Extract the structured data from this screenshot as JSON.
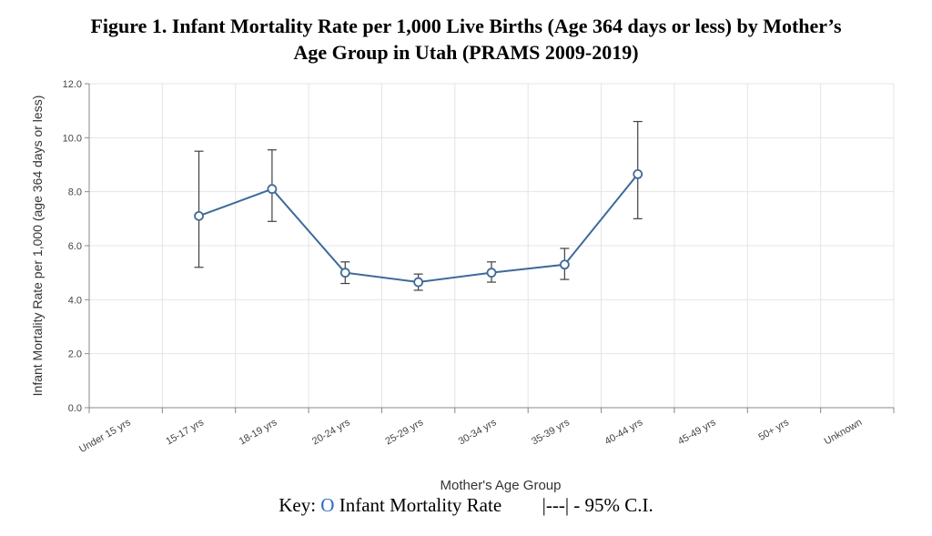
{
  "figure": {
    "title_line1": "Figure 1. Infant Mortality Rate per 1,000 Live Births (Age 364 days or less) by Mother’s",
    "title_line2": "Age Group in Utah (PRAMS 2009-2019)"
  },
  "key": {
    "prefix": "Key:",
    "rate_symbol": "O",
    "rate_label": "Infant Mortality Rate",
    "ci_symbol": "|---|",
    "ci_label": "- 95% C.I."
  },
  "colors": {
    "line": "#3e6a99",
    "error_bar": "#404040",
    "grid": "#e4e4e4",
    "key_symbol": "#2f6cc0"
  },
  "chart_data": {
    "type": "line",
    "xlabel": "Mother's Age Group",
    "ylabel": "Infant Mortality Rate per 1,000 (age 364 days or less)",
    "ylim": [
      0,
      12
    ],
    "yticks": [
      "0.0",
      "2.0",
      "4.0",
      "6.0",
      "8.0",
      "10.0",
      "12.0"
    ],
    "grid": true,
    "categories": [
      "Under 15 yrs",
      "15-17 yrs",
      "18-19 yrs",
      "20-24 yrs",
      "25-29 yrs",
      "30-34 yrs",
      "35-39 yrs",
      "40-44 yrs",
      "45-49 yrs",
      "50+ yrs",
      "Unknown"
    ],
    "values": [
      null,
      7.1,
      8.1,
      5.0,
      4.65,
      5.0,
      5.3,
      8.65,
      null,
      null,
      null
    ],
    "ci_lower": [
      null,
      5.2,
      6.9,
      4.6,
      4.35,
      4.65,
      4.75,
      7.0,
      null,
      null,
      null
    ],
    "ci_upper": [
      null,
      9.5,
      9.55,
      5.4,
      4.95,
      5.4,
      5.9,
      10.6,
      null,
      null,
      null
    ]
  }
}
